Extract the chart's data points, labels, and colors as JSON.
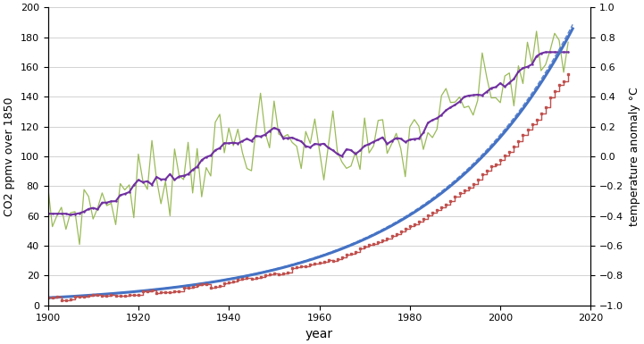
{
  "title": "",
  "xlabel": "year",
  "ylabel_left": "CO2 ppmv over 1850",
  "ylabel_right": "temperature anomaly °C",
  "xlim": [
    1900,
    2020
  ],
  "ylim_left": [
    0,
    200
  ],
  "ylim_right": [
    -1,
    1
  ],
  "xticks": [
    1900,
    1920,
    1940,
    1960,
    1980,
    2000,
    2020
  ],
  "yticks_left": [
    0,
    20,
    40,
    60,
    80,
    100,
    120,
    140,
    160,
    180,
    200
  ],
  "yticks_right": [
    -1,
    -0.8,
    -0.6,
    -0.4,
    -0.2,
    0,
    0.2,
    0.4,
    0.6,
    0.8,
    1
  ],
  "co2_smooth_color": "#4472C4",
  "co2_actual_color": "#C0504D",
  "temp_annual_color": "#9BBB59",
  "temp_smooth_color": "#7030A0",
  "background_color": "#FFFFFF",
  "grid_color": "#C0C0C0",
  "temp_base_1900": -0.42,
  "temp_base_2015": 0.5
}
